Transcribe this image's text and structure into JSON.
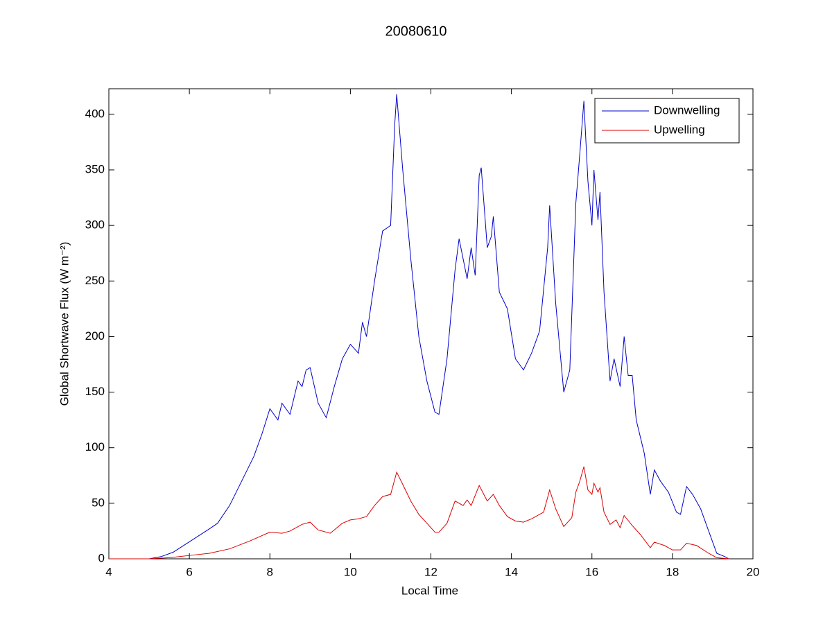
{
  "chart_data": {
    "type": "line",
    "title": "20080610",
    "xlabel": "Local Time",
    "ylabel": "Global Shortwave Flux (W m⁻²)",
    "xlim": [
      4,
      20
    ],
    "ylim": [
      0,
      423
    ],
    "xticks": [
      4,
      6,
      8,
      10,
      12,
      14,
      16,
      18,
      20
    ],
    "yticks": [
      0,
      50,
      100,
      150,
      200,
      250,
      300,
      350,
      400
    ],
    "grid": false,
    "legend": "upper right",
    "series": [
      {
        "name": "Downwelling",
        "color": "#0000cc",
        "x": [
          4.0,
          5.0,
          5.3,
          5.6,
          5.9,
          6.2,
          6.5,
          6.7,
          7.0,
          7.3,
          7.6,
          7.8,
          8.0,
          8.2,
          8.3,
          8.5,
          8.7,
          8.8,
          8.9,
          9.0,
          9.2,
          9.4,
          9.6,
          9.8,
          10.0,
          10.2,
          10.3,
          10.4,
          10.6,
          10.8,
          11.0,
          11.1,
          11.15,
          11.3,
          11.5,
          11.7,
          11.9,
          12.1,
          12.2,
          12.4,
          12.6,
          12.7,
          12.9,
          13.0,
          13.1,
          13.2,
          13.25,
          13.4,
          13.5,
          13.55,
          13.7,
          13.9,
          14.1,
          14.3,
          14.5,
          14.7,
          14.9,
          14.95,
          15.1,
          15.3,
          15.45,
          15.6,
          15.7,
          15.8,
          15.9,
          16.0,
          16.05,
          16.15,
          16.2,
          16.3,
          16.45,
          16.55,
          16.7,
          16.8,
          16.9,
          17.0,
          17.1,
          17.3,
          17.45,
          17.55,
          17.7,
          17.9,
          18.1,
          18.2,
          18.35,
          18.5,
          18.7,
          18.9,
          19.1,
          19.3,
          19.4
        ],
        "values": [
          0,
          0,
          2,
          6,
          13,
          20,
          27,
          32,
          48,
          70,
          92,
          112,
          135,
          125,
          140,
          130,
          160,
          155,
          170,
          172,
          140,
          127,
          155,
          180,
          193,
          185,
          213,
          200,
          250,
          295,
          300,
          390,
          418,
          350,
          270,
          200,
          160,
          132,
          130,
          180,
          260,
          288,
          252,
          280,
          255,
          345,
          352,
          280,
          290,
          308,
          240,
          225,
          180,
          170,
          185,
          205,
          280,
          318,
          230,
          150,
          170,
          320,
          365,
          412,
          340,
          300,
          350,
          305,
          330,
          240,
          160,
          180,
          155,
          200,
          165,
          165,
          125,
          95,
          58,
          80,
          70,
          60,
          42,
          40,
          65,
          58,
          45,
          25,
          5,
          2,
          0
        ]
      },
      {
        "name": "Upwelling",
        "color": "#dd0000",
        "x": [
          4.0,
          5.0,
          5.5,
          6.0,
          6.5,
          7.0,
          7.5,
          8.0,
          8.3,
          8.5,
          8.8,
          9.0,
          9.2,
          9.5,
          9.8,
          10.0,
          10.2,
          10.4,
          10.6,
          10.8,
          11.0,
          11.15,
          11.3,
          11.5,
          11.7,
          11.9,
          12.1,
          12.2,
          12.4,
          12.6,
          12.8,
          12.9,
          13.0,
          13.2,
          13.4,
          13.55,
          13.7,
          13.9,
          14.1,
          14.3,
          14.5,
          14.8,
          14.95,
          15.1,
          15.3,
          15.5,
          15.6,
          15.7,
          15.8,
          15.9,
          16.0,
          16.05,
          16.15,
          16.2,
          16.3,
          16.45,
          16.6,
          16.7,
          16.8,
          17.0,
          17.2,
          17.45,
          17.55,
          17.8,
          18.0,
          18.2,
          18.35,
          18.6,
          18.9,
          19.1,
          19.4
        ],
        "values": [
          0,
          0,
          1,
          3,
          5,
          9,
          16,
          24,
          23,
          25,
          31,
          33,
          26,
          23,
          32,
          35,
          36,
          38,
          48,
          56,
          58,
          78,
          67,
          52,
          40,
          32,
          24,
          24,
          32,
          52,
          48,
          53,
          48,
          66,
          52,
          58,
          48,
          38,
          34,
          33,
          36,
          42,
          62,
          45,
          29,
          37,
          60,
          70,
          83,
          62,
          58,
          68,
          60,
          64,
          42,
          31,
          35,
          28,
          39,
          30,
          22,
          10,
          15,
          12,
          8,
          8,
          14,
          12,
          5,
          1,
          0
        ]
      }
    ]
  }
}
